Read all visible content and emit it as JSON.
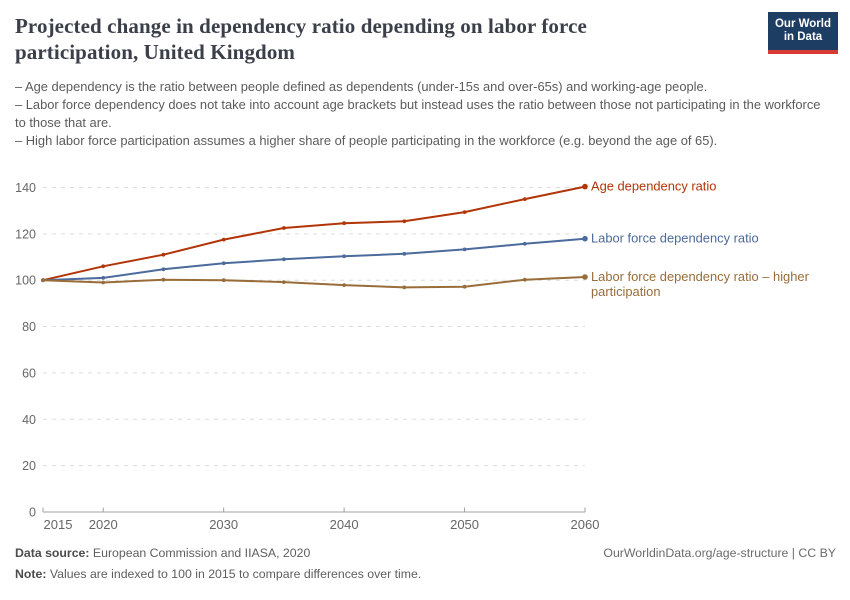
{
  "header": {
    "title": "Projected change in dependency ratio depending on labor force participation, United Kingdom",
    "logo": {
      "line1": "Our World",
      "line2": "in Data",
      "bg_color": "#1d3d63",
      "accent_color": "#d73a34"
    },
    "subtitle_bullets": [
      "– Age dependency is the ratio between people defined as dependents (under-15s and over-65s) and working-age people.",
      "– Labor force dependency does not take into account age brackets but instead uses the ratio between those not participating in the workforce to those that are.",
      "– High labor force participation assumes a higher share of people participating in the workforce (e.g. beyond the age of 65)."
    ]
  },
  "chart_data": {
    "type": "line",
    "x": [
      2015,
      2020,
      2025,
      2030,
      2035,
      2040,
      2045,
      2050,
      2055,
      2060
    ],
    "series": [
      {
        "name": "Age dependency ratio",
        "label_lines": [
          "Age dependency ratio"
        ],
        "color": "#b13507",
        "values": [
          100,
          106,
          111,
          117.5,
          122.5,
          124.6,
          125.4,
          129.4,
          135,
          140.4
        ]
      },
      {
        "name": "Labor force dependency ratio",
        "label_lines": [
          "Labor force dependency ratio"
        ],
        "color": "#4c6a9c",
        "values": [
          100,
          101,
          104.7,
          107.3,
          109,
          110.3,
          111.4,
          113.3,
          115.7,
          117.9
        ]
      },
      {
        "name": "Labor force dependency ratio – higher participation",
        "label_lines": [
          "Labor force dependency ratio – higher",
          "participation"
        ],
        "color": "#996d39",
        "values": [
          100,
          99,
          100.2,
          100,
          99.2,
          97.9,
          96.9,
          97.2,
          100.2,
          101.4
        ]
      }
    ],
    "xticks": [
      2015,
      2020,
      2030,
      2040,
      2050,
      2060
    ],
    "yticks": [
      0,
      20,
      40,
      60,
      80,
      100,
      120,
      140
    ],
    "ylim": [
      0,
      145
    ],
    "xlim": [
      2015,
      2060
    ],
    "grid": "horizontal-dashed",
    "legend_position": "right-of-line-ends"
  },
  "footer": {
    "data_source_label": "Data source:",
    "data_source_text": " European Commission and IIASA, 2020",
    "note_label": "Note:",
    "note_text": " Values are indexed to 100 in 2015 to compare differences over time.",
    "attribution": "OurWorldinData.org/age-structure | CC BY"
  }
}
